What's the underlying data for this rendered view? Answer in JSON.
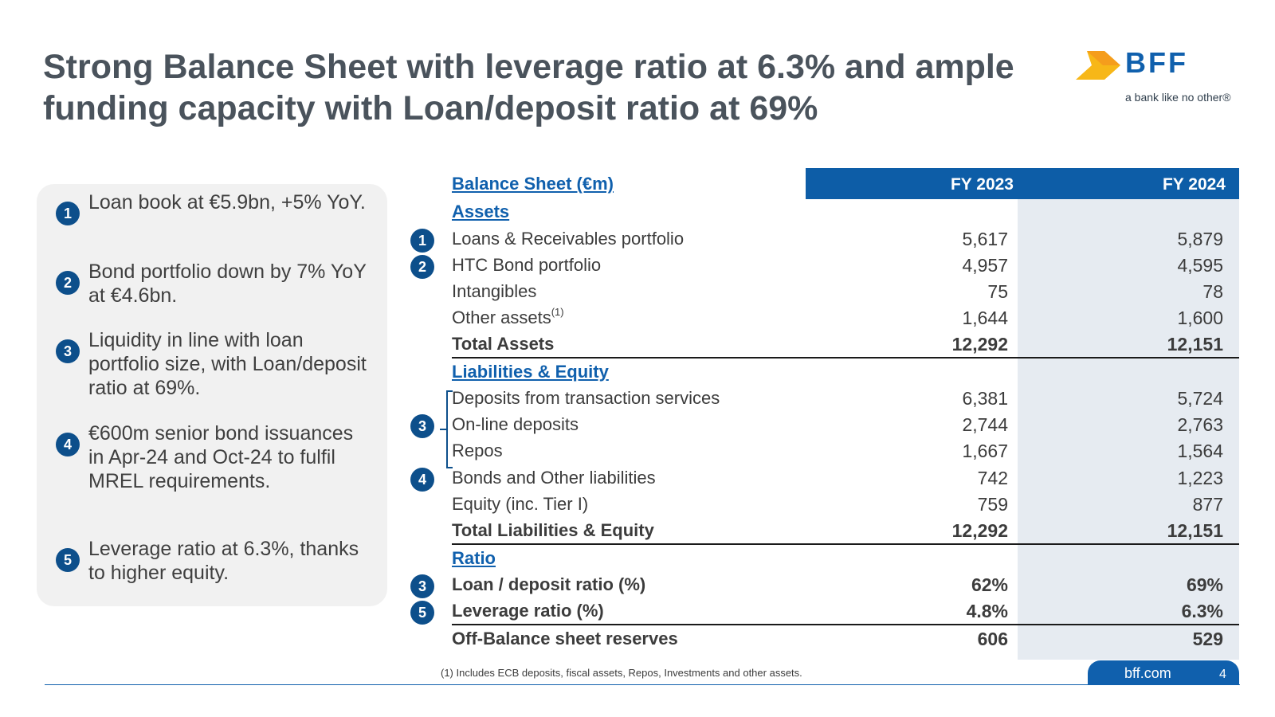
{
  "title": {
    "line1": "Strong Balance Sheet with leverage ratio at 6.3% and ample",
    "line2": "funding capacity with Loan/deposit ratio at 69%"
  },
  "logo": {
    "word": "BFF",
    "tagline": "a bank like no other®"
  },
  "highlights": [
    {
      "num": "1",
      "text": "Loan book at €5.9bn, +5% YoY."
    },
    {
      "num": "2",
      "text": "Bond portfolio down by 7% YoY at €4.6bn."
    },
    {
      "num": "3",
      "text": "Liquidity in line with loan portfolio size, with Loan/deposit ratio at 69%."
    },
    {
      "num": "4",
      "text": "€600m senior bond issuances in Apr-24 and Oct-24 to fulfil MREL requirements."
    },
    {
      "num": "5",
      "text": "Leverage ratio at 6.3%, thanks to higher equity."
    }
  ],
  "table": {
    "header": {
      "label": "Balance Sheet (€m)",
      "col1": "FY 2023",
      "col2": "FY 2024"
    },
    "assets_heading": "Assets",
    "assets": [
      {
        "badge": "1",
        "label": "Loans & Receivables portfolio",
        "fy2023": "5,617",
        "fy2024": "5,879"
      },
      {
        "badge": "2",
        "label": "HTC Bond portfolio",
        "fy2023": "4,957",
        "fy2024": "4,595"
      },
      {
        "badge": "",
        "label": "Intangibles",
        "fy2023": "75",
        "fy2024": "78"
      },
      {
        "badge": "",
        "label": "Other assets",
        "note": "(1)",
        "fy2023": "1,644",
        "fy2024": "1,600"
      }
    ],
    "total_assets": {
      "label": "Total Assets",
      "fy2023": "12,292",
      "fy2024": "12,151"
    },
    "liab_heading": "Liabilities & Equity",
    "liabilities": [
      {
        "label": "Deposits from transaction services",
        "fy2023": "6,381",
        "fy2024": "5,724"
      },
      {
        "label": "On-line deposits",
        "fy2023": "2,744",
        "fy2024": "2,763"
      },
      {
        "label": "Repos",
        "fy2023": "1,667",
        "fy2024": "1,564"
      },
      {
        "badge": "4",
        "label": "Bonds and Other liabilities",
        "fy2023": "742",
        "fy2024": "1,223"
      },
      {
        "badge": "",
        "label": "Equity (inc. Tier I)",
        "fy2023": "759",
        "fy2024": "877"
      }
    ],
    "deposits_badge": "3",
    "total_liab": {
      "label": "Total Liabilities & Equity",
      "fy2023": "12,292",
      "fy2024": "12,151"
    },
    "ratio_heading": "Ratio",
    "ratios": [
      {
        "badge": "3",
        "label": "Loan / deposit ratio (%)",
        "fy2023": "62%",
        "fy2024": "69%"
      },
      {
        "badge": "5",
        "label": "Leverage ratio (%)",
        "fy2023": "4.8%",
        "fy2024": "6.3%"
      }
    ],
    "off_balance": {
      "label": "Off-Balance sheet reserves",
      "fy2023": "606",
      "fy2024": "529"
    }
  },
  "footnote": "(1) Includes ECB deposits, fiscal assets, Repos, Investments and other assets.",
  "footer": {
    "url": "bff.com",
    "page": "4"
  },
  "colors": {
    "brand_blue": "#1060AD",
    "dark_blue": "#0D4F8B",
    "logo_yellow": "#F7B718"
  }
}
